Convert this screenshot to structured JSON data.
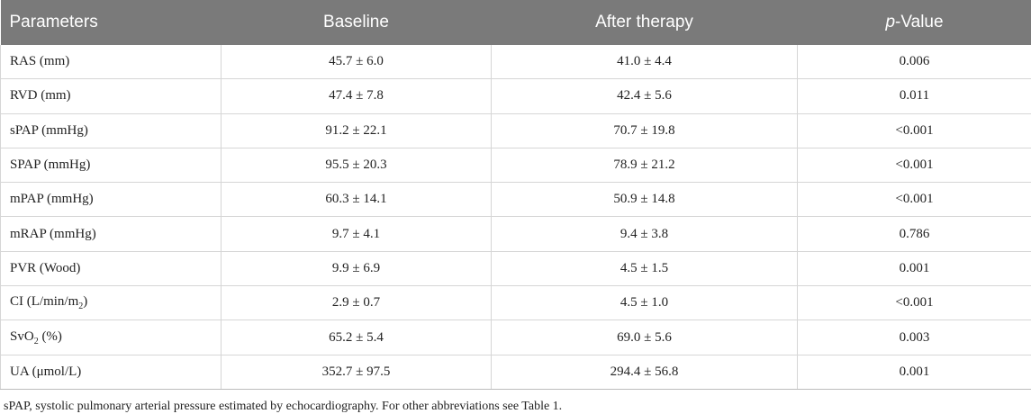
{
  "table": {
    "headers": [
      "Parameters",
      "Baseline",
      "After therapy",
      "p",
      "-Value"
    ],
    "rows": [
      {
        "param": "RAS (mm)",
        "baseline": "45.7 ± 6.0",
        "after": "41.0 ± 4.4",
        "p": "0.006"
      },
      {
        "param": "RVD (mm)",
        "baseline": "47.4 ± 7.8",
        "after": "42.4 ± 5.6",
        "p": "0.011"
      },
      {
        "param": "sPAP (mmHg)",
        "baseline": "91.2 ± 22.1",
        "after": "70.7 ± 19.8",
        "p": "<0.001"
      },
      {
        "param": "SPAP (mmHg)",
        "baseline": "95.5 ± 20.3",
        "after": "78.9 ± 21.2",
        "p": "<0.001"
      },
      {
        "param": "mPAP (mmHg)",
        "baseline": "60.3 ± 14.1",
        "after": "50.9 ± 14.8",
        "p": "<0.001"
      },
      {
        "param": "mRAP (mmHg)",
        "baseline": "9.7 ± 4.1",
        "after": "9.4 ± 3.8",
        "p": "0.786"
      },
      {
        "param": "PVR (Wood)",
        "baseline": "9.9 ± 6.9",
        "after": "4.5 ± 1.5",
        "p": "0.001"
      },
      {
        "param_parts": [
          "CI (L/min/m",
          "2",
          ")"
        ],
        "baseline": "2.9 ± 0.7",
        "after": "4.5 ± 1.0",
        "p": "<0.001"
      },
      {
        "param_parts": [
          "SvO",
          "2",
          " (%)"
        ],
        "baseline": "65.2 ± 5.4",
        "after": "69.0 ± 5.6",
        "p": "0.003"
      },
      {
        "param": "UA (μmol/L)",
        "baseline": "352.7 ± 97.5",
        "after": "294.4 ± 56.8",
        "p": "0.001"
      }
    ]
  },
  "footnote": "sPAP, systolic pulmonary arterial pressure estimated by echocardiography. For other abbreviations see Table 1."
}
